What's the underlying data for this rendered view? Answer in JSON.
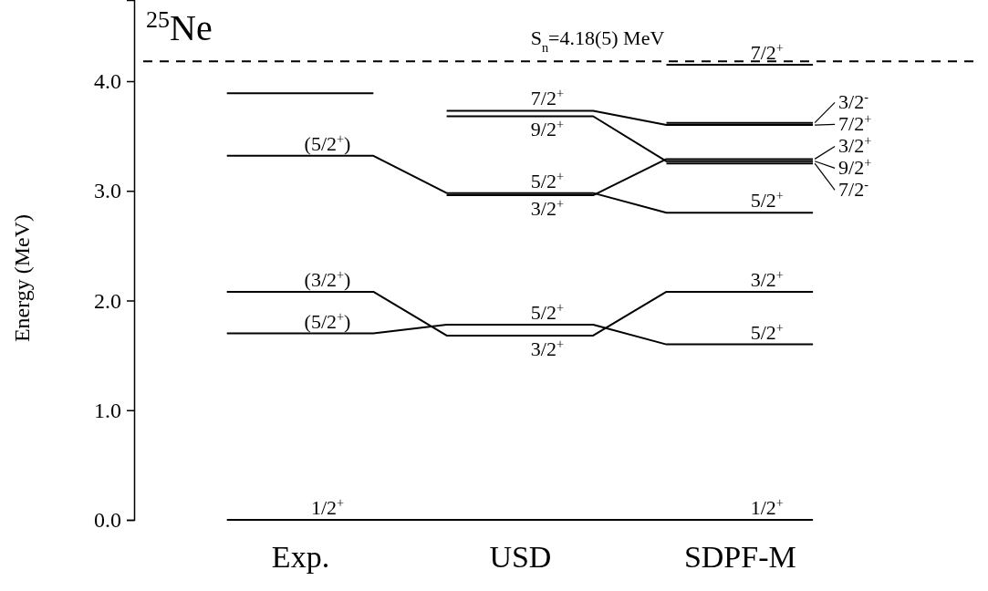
{
  "chart_data": {
    "type": "line",
    "title": "$^{25}$Ne",
    "ylabel": "Energy (MeV)",
    "categories": [
      null,
      "Exp.",
      null,
      null,
      "USD",
      null,
      null,
      "SDPF-M",
      null
    ],
    "ylim": [
      0,
      4.74
    ],
    "yticks": [
      {
        "value": 0,
        "label": "0.0"
      },
      {
        "value": 1,
        "label": "1.0"
      },
      {
        "value": 2,
        "label": "2.0"
      },
      {
        "value": 3,
        "label": "3.0"
      },
      {
        "value": 4,
        "label": "4.0"
      }
    ],
    "ref_lines": [
      {
        "axis": "y",
        "value": 4.18,
        "label": "S$_{n}$=4.18(5) MeV",
        "line_style": "dashed",
        "color": "#000000"
      }
    ],
    "series": [
      {
        "color": "#000000",
        "values": [
          0,
          0,
          0,
          0,
          0,
          0,
          0,
          0,
          0
        ],
        "value_labels": [
          null,
          "1/2$^{+}$",
          null,
          null,
          null,
          null,
          null,
          "1/2$^{+}$",
          null
        ]
      },
      {
        "color": "#000000",
        "values": [
          1.7,
          1.7,
          1.7,
          1.78,
          1.78,
          1.78,
          1.6,
          1.6,
          1.6
        ],
        "value_labels": [
          null,
          "(5/2$^{+}$)",
          null,
          null,
          "5/2$^{+}$",
          null,
          null,
          "5/2$^{+}$",
          null
        ]
      },
      {
        "color": "#000000",
        "values": [
          2.08,
          2.08,
          2.08,
          1.68,
          1.68,
          1.68,
          2.08,
          2.08,
          2.08
        ],
        "value_labels": [
          null,
          "(3/2$^{+}$)",
          null,
          null,
          "3/2$^{+}$",
          null,
          null,
          "3/2$^{+}$",
          null
        ]
      },
      {
        "color": "#000000",
        "values": [
          3.32,
          3.32,
          3.32,
          2.98,
          2.98,
          2.98,
          2.8,
          2.8,
          2.8
        ],
        "value_labels": [
          null,
          "(5/2$^{+}$)",
          null,
          null,
          "5/2$^{+}$",
          null,
          null,
          "5/2$^{+}$",
          null
        ]
      },
      {
        "color": "#000000",
        "values": [
          null,
          null,
          null,
          2.96,
          2.96,
          2.96,
          3.29,
          3.29,
          3.29
        ],
        "value_labels": [
          null,
          null,
          null,
          null,
          "3/2$^{+}$",
          null,
          null,
          null,
          "3/2$^{+}$"
        ]
      },
      {
        "color": "#000000",
        "values": [
          null,
          null,
          null,
          null,
          null,
          null,
          3.62,
          3.62,
          3.62
        ],
        "value_labels": [
          null,
          null,
          null,
          null,
          null,
          null,
          null,
          null,
          "3/2$^{-}$"
        ]
      },
      {
        "color": "#000000",
        "values": [
          null,
          null,
          null,
          3.73,
          3.73,
          3.73,
          3.6,
          3.6,
          3.6
        ],
        "value_labels": [
          null,
          null,
          null,
          null,
          "7/2$^{+}$",
          null,
          null,
          null,
          "7/2$^{+}$"
        ]
      },
      {
        "color": "#000000",
        "values": [
          null,
          null,
          null,
          3.68,
          3.68,
          3.68,
          3.27,
          3.27,
          3.27
        ],
        "value_labels": [
          null,
          null,
          null,
          null,
          "9/2$^{+}$",
          null,
          null,
          null,
          "9/2$^{+}$"
        ]
      },
      {
        "color": "#000000",
        "values": [
          3.89,
          3.89,
          3.89,
          null,
          null,
          null,
          null,
          null,
          null
        ]
      },
      {
        "color": "#000000",
        "values": [
          null,
          null,
          null,
          null,
          null,
          null,
          4.15,
          4.15,
          4.15
        ],
        "value_labels": [
          null,
          null,
          null,
          null,
          null,
          null,
          null,
          "7/2$^{+}$",
          null
        ]
      },
      {
        "color": "#000000",
        "values": [
          null,
          null,
          null,
          null,
          null,
          null,
          3.25,
          3.25,
          3.25
        ],
        "value_labels": [
          null,
          null,
          null,
          null,
          null,
          null,
          null,
          null,
          "7/2$^{-}$"
        ]
      }
    ]
  }
}
